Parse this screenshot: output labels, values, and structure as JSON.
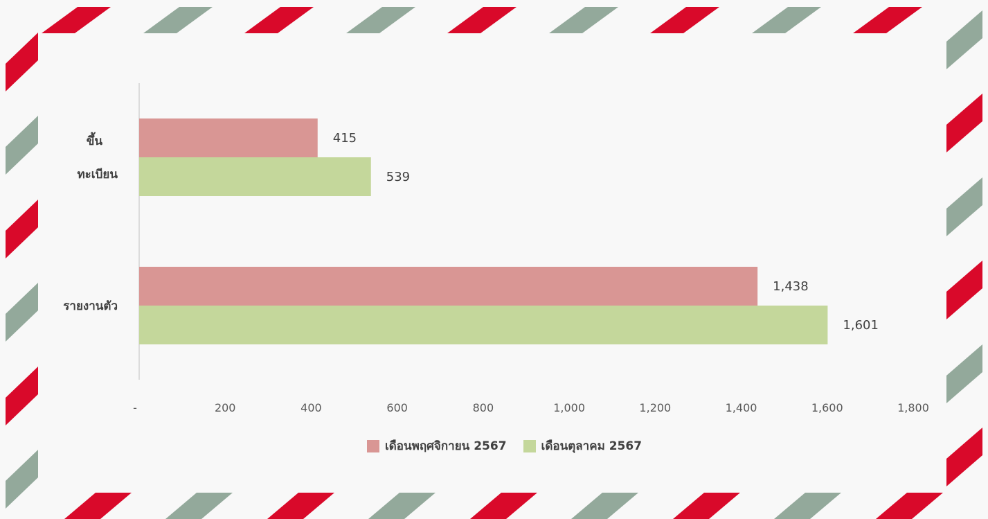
{
  "colors": {
    "stripe_red": "#d9092a",
    "stripe_green": "#93a99b",
    "background": "#f8f8f8",
    "axis": "#bfbfbf"
  },
  "chart_data": {
    "type": "bar",
    "orientation": "horizontal",
    "categories": [
      "ขึ้น\nทะเบียน",
      "รายงานตัว"
    ],
    "category_lines": [
      [
        "ขึ้น",
        "ทะเบียน"
      ],
      [
        "รายงานตัว"
      ]
    ],
    "series": [
      {
        "name": "เดือนพฤศจิกายน 2567",
        "color": "#d99694",
        "values": [
          415,
          1438
        ],
        "labels": [
          "415",
          "1,438"
        ]
      },
      {
        "name": "เดือนตุลาคม 2567",
        "color": "#c4d79b",
        "values": [
          539,
          1601
        ],
        "labels": [
          "539",
          "1,601"
        ]
      }
    ],
    "xlim": [
      0,
      1800
    ],
    "x_ticks": [
      0,
      200,
      400,
      600,
      800,
      1000,
      1200,
      1400,
      1600,
      1800
    ],
    "x_tick_labels": [
      "-",
      "200",
      "400",
      "600",
      "800",
      "1,000",
      "1,200",
      "1,400",
      "1,600",
      "1,800"
    ],
    "grid": false,
    "legend_position": "bottom",
    "title": "",
    "xlabel": "",
    "ylabel": ""
  }
}
